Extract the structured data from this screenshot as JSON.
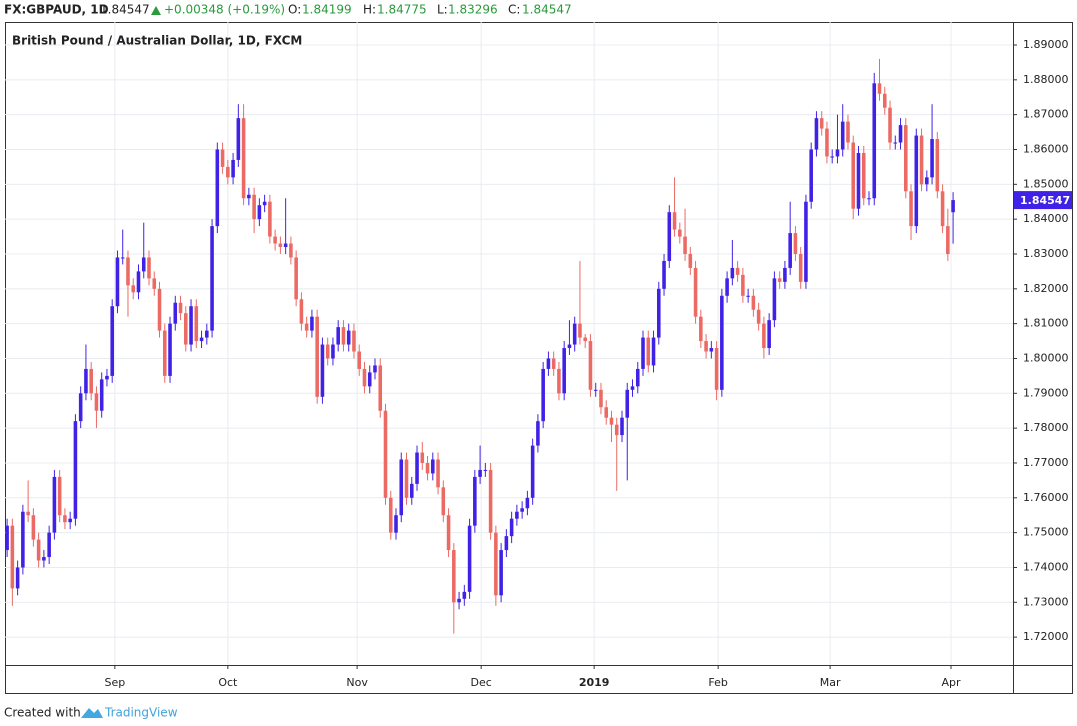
{
  "header": {
    "symbol": "FX:GBPAUD, 1D",
    "change": "+0.00348 (+0.19%)",
    "o": "O:",
    "h": "H:",
    "l": "L:",
    "c": "C:"
  },
  "footer": {
    "created_with": "Created with",
    "brand": "TradingView"
  },
  "chart_data": {
    "type": "candlestick",
    "title": "British Pound / Australian Dollar, 1D, FXCM",
    "up_color": "#3f22e6",
    "down_color": "#ec6a64",
    "grid": true,
    "open": [
      1.745,
      1.752,
      1.734,
      1.74,
      1.756,
      1.755,
      1.748,
      1.742,
      1.743,
      1.75,
      1.766,
      1.755,
      1.753,
      1.754,
      1.782,
      1.79,
      1.797,
      1.79,
      1.785,
      1.794,
      1.795,
      1.815,
      1.829,
      1.829,
      1.821,
      1.819,
      1.825,
      1.829,
      1.823,
      1.82,
      1.808,
      1.795,
      1.81,
      1.816,
      1.813,
      1.804,
      1.815,
      1.805,
      1.806,
      1.808,
      1.838,
      1.86,
      1.855,
      1.852,
      1.857,
      1.869,
      1.846,
      1.847,
      1.84,
      1.844,
      1.845,
      1.835,
      1.833,
      1.832,
      1.833,
      1.829,
      1.817,
      1.81,
      1.808,
      1.812,
      1.789,
      1.804,
      1.8,
      1.804,
      1.809,
      1.804,
      1.808,
      1.802,
      1.797,
      1.792,
      1.796,
      1.798,
      1.785,
      1.76,
      1.75,
      1.755,
      1.771,
      1.76,
      1.764,
      1.773,
      1.77,
      1.767,
      1.771,
      1.763,
      1.755,
      1.745,
      1.73,
      1.731,
      1.733,
      1.752,
      1.766,
      1.768,
      1.768,
      1.75,
      1.732,
      1.745,
      1.749,
      1.754,
      1.756,
      1.757,
      1.76,
      1.775,
      1.782,
      1.797,
      1.8,
      1.797,
      1.79,
      1.803,
      1.804,
      1.81,
      1.806,
      1.805,
      1.791,
      1.791,
      1.786,
      1.783,
      1.781,
      1.778,
      1.783,
      1.791,
      1.792,
      1.797,
      1.806,
      1.798,
      1.806,
      1.82,
      1.828,
      1.842,
      1.837,
      1.835,
      1.83,
      1.826,
      1.812,
      1.805,
      1.802,
      1.803,
      1.791,
      1.818,
      1.823,
      1.826,
      1.824,
      1.818,
      1.818,
      1.814,
      1.81,
      1.803,
      1.811,
      1.823,
      1.822,
      1.826,
      1.836,
      1.83,
      1.822,
      1.845,
      1.86,
      1.869,
      1.866,
      1.858,
      1.858,
      1.86,
      1.868,
      1.862,
      1.843,
      1.859,
      1.846,
      1.846,
      1.879,
      1.876,
      1.872,
      1.862,
      1.862,
      1.867,
      1.848,
      1.838,
      1.864,
      1.85,
      1.852,
      1.863,
      1.848,
      1.838,
      1.84199
    ],
    "high": [
      1.754,
      1.754,
      1.742,
      1.758,
      1.765,
      1.757,
      1.75,
      1.745,
      1.752,
      1.768,
      1.768,
      1.757,
      1.756,
      1.784,
      1.792,
      1.804,
      1.799,
      1.792,
      1.796,
      1.797,
      1.817,
      1.831,
      1.837,
      1.831,
      1.823,
      1.827,
      1.839,
      1.831,
      1.825,
      1.822,
      1.81,
      1.812,
      1.818,
      1.818,
      1.815,
      1.817,
      1.817,
      1.808,
      1.81,
      1.84,
      1.862,
      1.862,
      1.857,
      1.859,
      1.873,
      1.873,
      1.849,
      1.849,
      1.846,
      1.847,
      1.847,
      1.837,
      1.835,
      1.846,
      1.835,
      1.831,
      1.819,
      1.812,
      1.814,
      1.814,
      1.806,
      1.806,
      1.806,
      1.811,
      1.811,
      1.81,
      1.81,
      1.804,
      1.799,
      1.798,
      1.8,
      1.8,
      1.787,
      1.762,
      1.757,
      1.773,
      1.773,
      1.766,
      1.775,
      1.776,
      1.772,
      1.773,
      1.773,
      1.765,
      1.757,
      1.747,
      1.733,
      1.735,
      1.754,
      1.768,
      1.775,
      1.77,
      1.77,
      1.752,
      1.747,
      1.751,
      1.756,
      1.758,
      1.759,
      1.762,
      1.777,
      1.784,
      1.799,
      1.802,
      1.802,
      1.799,
      1.805,
      1.811,
      1.812,
      1.828,
      1.807,
      1.807,
      1.793,
      1.793,
      1.788,
      1.785,
      1.783,
      1.785,
      1.793,
      1.794,
      1.799,
      1.808,
      1.808,
      1.808,
      1.822,
      1.83,
      1.844,
      1.852,
      1.839,
      1.843,
      1.832,
      1.828,
      1.814,
      1.807,
      1.805,
      1.805,
      1.82,
      1.825,
      1.834,
      1.828,
      1.826,
      1.82,
      1.82,
      1.816,
      1.812,
      1.813,
      1.825,
      1.825,
      1.828,
      1.845,
      1.838,
      1.832,
      1.847,
      1.862,
      1.871,
      1.871,
      1.868,
      1.86,
      1.87,
      1.873,
      1.87,
      1.864,
      1.861,
      1.861,
      1.848,
      1.882,
      1.886,
      1.878,
      1.874,
      1.864,
      1.869,
      1.869,
      1.85,
      1.866,
      1.866,
      1.854,
      1.873,
      1.865,
      1.85,
      1.843,
      1.84775
    ],
    "low": [
      1.743,
      1.729,
      1.732,
      1.738,
      1.753,
      1.746,
      1.74,
      1.74,
      1.741,
      1.748,
      1.753,
      1.751,
      1.751,
      1.752,
      1.78,
      1.788,
      1.788,
      1.78,
      1.783,
      1.792,
      1.793,
      1.813,
      1.827,
      1.812,
      1.817,
      1.817,
      1.823,
      1.821,
      1.818,
      1.806,
      1.793,
      1.793,
      1.808,
      1.811,
      1.802,
      1.802,
      1.803,
      1.803,
      1.804,
      1.806,
      1.836,
      1.853,
      1.85,
      1.85,
      1.855,
      1.844,
      1.844,
      1.836,
      1.838,
      1.842,
      1.833,
      1.831,
      1.83,
      1.83,
      1.827,
      1.815,
      1.808,
      1.806,
      1.806,
      1.787,
      1.787,
      1.798,
      1.798,
      1.802,
      1.802,
      1.802,
      1.8,
      1.795,
      1.79,
      1.79,
      1.794,
      1.783,
      1.758,
      1.748,
      1.748,
      1.753,
      1.758,
      1.758,
      1.762,
      1.768,
      1.765,
      1.765,
      1.761,
      1.753,
      1.743,
      1.721,
      1.728,
      1.729,
      1.731,
      1.75,
      1.764,
      1.766,
      1.748,
      1.729,
      1.73,
      1.743,
      1.747,
      1.752,
      1.754,
      1.755,
      1.758,
      1.773,
      1.78,
      1.795,
      1.795,
      1.788,
      1.788,
      1.801,
      1.802,
      1.804,
      1.803,
      1.789,
      1.789,
      1.784,
      1.781,
      1.776,
      1.762,
      1.776,
      1.765,
      1.789,
      1.79,
      1.795,
      1.796,
      1.796,
      1.804,
      1.818,
      1.826,
      1.835,
      1.833,
      1.828,
      1.824,
      1.81,
      1.803,
      1.8,
      1.8,
      1.788,
      1.789,
      1.816,
      1.821,
      1.822,
      1.816,
      1.816,
      1.812,
      1.808,
      1.8,
      1.801,
      1.809,
      1.82,
      1.82,
      1.824,
      1.828,
      1.82,
      1.82,
      1.843,
      1.858,
      1.864,
      1.856,
      1.856,
      1.856,
      1.858,
      1.86,
      1.84,
      1.841,
      1.844,
      1.844,
      1.844,
      1.874,
      1.87,
      1.86,
      1.86,
      1.86,
      1.846,
      1.834,
      1.836,
      1.848,
      1.848,
      1.85,
      1.846,
      1.836,
      1.828,
      1.83296
    ],
    "close": [
      1.752,
      1.734,
      1.74,
      1.756,
      1.755,
      1.748,
      1.742,
      1.743,
      1.75,
      1.766,
      1.755,
      1.753,
      1.754,
      1.782,
      1.79,
      1.797,
      1.79,
      1.785,
      1.794,
      1.795,
      1.815,
      1.829,
      1.829,
      1.821,
      1.819,
      1.825,
      1.829,
      1.823,
      1.82,
      1.808,
      1.795,
      1.81,
      1.816,
      1.813,
      1.804,
      1.815,
      1.805,
      1.806,
      1.808,
      1.838,
      1.86,
      1.855,
      1.852,
      1.857,
      1.869,
      1.846,
      1.847,
      1.84,
      1.844,
      1.845,
      1.835,
      1.833,
      1.832,
      1.833,
      1.829,
      1.817,
      1.81,
      1.808,
      1.812,
      1.789,
      1.804,
      1.8,
      1.804,
      1.809,
      1.804,
      1.808,
      1.802,
      1.797,
      1.792,
      1.796,
      1.798,
      1.785,
      1.76,
      1.75,
      1.755,
      1.771,
      1.76,
      1.764,
      1.773,
      1.77,
      1.767,
      1.771,
      1.763,
      1.755,
      1.745,
      1.73,
      1.731,
      1.733,
      1.752,
      1.766,
      1.768,
      1.768,
      1.75,
      1.732,
      1.745,
      1.749,
      1.754,
      1.756,
      1.757,
      1.76,
      1.775,
      1.782,
      1.797,
      1.8,
      1.797,
      1.79,
      1.803,
      1.804,
      1.81,
      1.806,
      1.805,
      1.791,
      1.791,
      1.786,
      1.783,
      1.781,
      1.778,
      1.783,
      1.791,
      1.792,
      1.797,
      1.806,
      1.798,
      1.806,
      1.82,
      1.828,
      1.842,
      1.837,
      1.835,
      1.83,
      1.826,
      1.812,
      1.805,
      1.802,
      1.803,
      1.791,
      1.818,
      1.823,
      1.826,
      1.824,
      1.818,
      1.818,
      1.814,
      1.81,
      1.803,
      1.811,
      1.823,
      1.822,
      1.826,
      1.836,
      1.83,
      1.822,
      1.845,
      1.86,
      1.869,
      1.866,
      1.858,
      1.858,
      1.86,
      1.868,
      1.862,
      1.843,
      1.859,
      1.846,
      1.846,
      1.879,
      1.876,
      1.872,
      1.862,
      1.862,
      1.867,
      1.848,
      1.838,
      1.864,
      1.85,
      1.852,
      1.863,
      1.848,
      1.838,
      1.83,
      1.84547
    ],
    "xlim": [
      -0.4,
      191.4
    ],
    "xticks": [
      {
        "value": 20.5,
        "label": "Sep"
      },
      {
        "value": 42,
        "label": "Oct"
      },
      {
        "value": 66.6,
        "label": "Nov"
      },
      {
        "value": 90.2,
        "label": "Dec"
      },
      {
        "value": 111.7,
        "label": "2019"
      },
      {
        "value": 135.3,
        "label": "Feb"
      },
      {
        "value": 156.6,
        "label": "Mar"
      },
      {
        "value": 179.6,
        "label": "Apr"
      }
    ],
    "ylim": [
      1.712,
      1.8966
    ],
    "yticks": [
      {
        "value": 1.72,
        "label": "1.72000"
      },
      {
        "value": 1.73,
        "label": "1.73000"
      },
      {
        "value": 1.74,
        "label": "1.74000"
      },
      {
        "value": 1.75,
        "label": "1.75000"
      },
      {
        "value": 1.76,
        "label": "1.76000"
      },
      {
        "value": 1.77,
        "label": "1.77000"
      },
      {
        "value": 1.78,
        "label": "1.78000"
      },
      {
        "value": 1.79,
        "label": "1.79000"
      },
      {
        "value": 1.8,
        "label": "1.80000"
      },
      {
        "value": 1.81,
        "label": "1.81000"
      },
      {
        "value": 1.82,
        "label": "1.82000"
      },
      {
        "value": 1.83,
        "label": "1.83000"
      },
      {
        "value": 1.84,
        "label": "1.84000"
      },
      {
        "value": 1.85,
        "label": "1.85000"
      },
      {
        "value": 1.86,
        "label": "1.86000"
      },
      {
        "value": 1.87,
        "label": "1.87000"
      },
      {
        "value": 1.88,
        "label": "1.88000"
      },
      {
        "value": 1.89,
        "label": "1.89000"
      }
    ]
  }
}
